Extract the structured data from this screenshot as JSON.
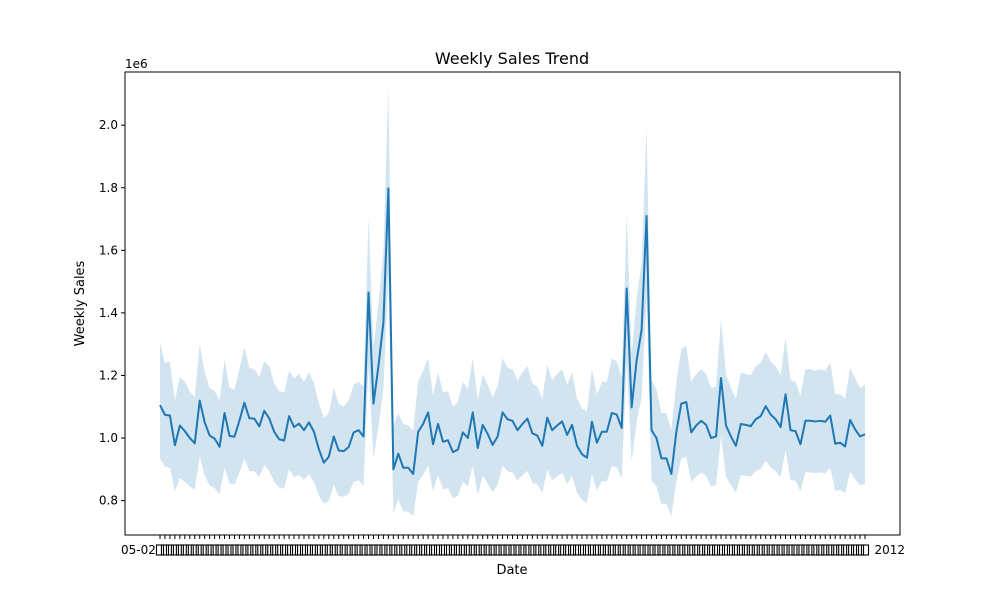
{
  "chart_data": {
    "type": "line",
    "title": "Weekly Sales Trend",
    "xlabel": "Date",
    "ylabel": "Weekly Sales",
    "y_multiplier_label": "1e6",
    "ylim": [
      0.69,
      2.17
    ],
    "y_ticks": [
      0.8,
      1.0,
      1.2,
      1.4,
      1.6,
      1.8,
      2.0
    ],
    "y_tick_labels": [
      "0.8",
      "1.0",
      "1.2",
      "1.4",
      "1.6",
      "1.8",
      "2.0"
    ],
    "x_tick_label_start": "05-02",
    "x_tick_label_end": "2012",
    "grid": false,
    "legend": "none",
    "colors": {
      "line": "#1f77b4",
      "band": "#1f77b4",
      "band_opacity": 0.2
    },
    "series": [
      {
        "y": [
          1.105,
          1.074,
          1.072,
          0.977,
          1.04,
          1.022,
          1.0,
          0.983,
          1.12,
          1.05,
          1.008,
          0.998,
          0.972,
          1.08,
          1.007,
          1.004,
          1.056,
          1.113,
          1.063,
          1.062,
          1.037,
          1.087,
          1.063,
          1.02,
          0.996,
          0.992,
          1.07,
          1.035,
          1.046,
          1.025,
          1.05,
          1.02,
          0.964,
          0.921,
          0.94,
          1.005,
          0.96,
          0.958,
          0.971,
          1.018,
          1.025,
          1.005,
          1.465,
          1.11,
          1.23,
          1.37,
          1.798,
          0.9,
          0.95,
          0.905,
          0.905,
          0.885,
          1.02,
          1.045,
          1.082,
          0.98,
          1.045,
          0.988,
          0.993,
          0.955,
          0.963,
          1.018,
          1.0,
          1.082,
          0.968,
          1.042,
          1.013,
          0.978,
          1.005,
          1.082,
          1.06,
          1.055,
          1.025,
          1.045,
          1.062,
          1.015,
          1.008,
          0.975,
          1.065,
          1.025,
          1.04,
          1.053,
          1.01,
          1.042,
          0.975,
          0.948,
          0.937,
          1.052,
          0.985,
          1.02,
          1.02,
          1.08,
          1.075,
          1.032,
          1.478,
          1.098,
          1.248,
          1.345,
          1.71,
          1.025,
          1.0,
          0.935,
          0.935,
          0.885,
          1.02,
          1.11,
          1.115,
          1.018,
          1.04,
          1.055,
          1.042,
          1.0,
          1.005,
          1.192,
          1.04,
          1.005,
          0.975,
          1.045,
          1.042,
          1.038,
          1.06,
          1.07,
          1.102,
          1.075,
          1.06,
          1.035,
          1.14,
          1.025,
          1.022,
          0.98,
          1.055,
          1.055,
          1.053,
          1.055,
          1.052,
          1.072,
          0.982,
          0.985,
          0.973,
          1.058,
          1.028,
          1.005,
          1.012
        ],
        "ci_low": [
          0.935,
          0.908,
          0.905,
          0.83,
          0.872,
          0.86,
          0.845,
          0.835,
          0.94,
          0.88,
          0.848,
          0.84,
          0.82,
          0.905,
          0.855,
          0.852,
          0.89,
          0.935,
          0.895,
          0.893,
          0.875,
          0.915,
          0.895,
          0.86,
          0.842,
          0.838,
          0.9,
          0.875,
          0.882,
          0.865,
          0.885,
          0.86,
          0.815,
          0.79,
          0.8,
          0.85,
          0.815,
          0.812,
          0.822,
          0.86,
          0.865,
          0.848,
          1.23,
          0.935,
          1.035,
          1.155,
          1.525,
          0.76,
          0.805,
          0.765,
          0.765,
          0.75,
          0.86,
          0.882,
          0.912,
          0.83,
          0.882,
          0.836,
          0.84,
          0.808,
          0.815,
          0.86,
          0.845,
          0.912,
          0.818,
          0.88,
          0.855,
          0.827,
          0.85,
          0.912,
          0.893,
          0.889,
          0.865,
          0.881,
          0.895,
          0.857,
          0.851,
          0.825,
          0.898,
          0.865,
          0.877,
          0.888,
          0.853,
          0.879,
          0.825,
          0.802,
          0.793,
          0.887,
          0.833,
          0.862,
          0.862,
          0.91,
          0.906,
          0.871,
          1.245,
          0.925,
          1.05,
          1.13,
          1.445,
          0.865,
          0.845,
          0.79,
          0.79,
          0.75,
          0.862,
          0.935,
          0.94,
          0.86,
          0.877,
          0.889,
          0.879,
          0.845,
          0.85,
          1.005,
          0.877,
          0.849,
          0.825,
          0.882,
          0.879,
          0.876,
          0.894,
          0.902,
          0.928,
          0.906,
          0.894,
          0.874,
          0.96,
          0.865,
          0.863,
          0.83,
          0.89,
          0.89,
          0.888,
          0.89,
          0.887,
          0.904,
          0.831,
          0.834,
          0.823,
          0.892,
          0.868,
          0.849,
          0.855
        ],
        "ci_high": [
          1.305,
          1.24,
          1.245,
          1.12,
          1.195,
          1.18,
          1.15,
          1.13,
          1.3,
          1.21,
          1.16,
          1.15,
          1.12,
          1.25,
          1.16,
          1.155,
          1.22,
          1.29,
          1.225,
          1.22,
          1.195,
          1.245,
          1.23,
          1.175,
          1.15,
          1.145,
          1.215,
          1.19,
          1.205,
          1.18,
          1.21,
          1.175,
          1.11,
          1.065,
          1.08,
          1.16,
          1.11,
          1.1,
          1.12,
          1.17,
          1.18,
          1.165,
          1.705,
          1.29,
          1.43,
          1.595,
          2.12,
          1.04,
          1.08,
          1.045,
          1.04,
          1.025,
          1.18,
          1.215,
          1.255,
          1.135,
          1.21,
          1.145,
          1.15,
          1.1,
          1.115,
          1.18,
          1.155,
          1.255,
          1.12,
          1.205,
          1.17,
          1.13,
          1.165,
          1.255,
          1.225,
          1.22,
          1.185,
          1.21,
          1.23,
          1.175,
          1.165,
          1.125,
          1.235,
          1.185,
          1.205,
          1.22,
          1.17,
          1.21,
          1.125,
          1.095,
          1.085,
          1.22,
          1.14,
          1.18,
          1.18,
          1.255,
          1.245,
          1.195,
          1.71,
          1.27,
          1.445,
          1.56,
          1.99,
          1.185,
          1.155,
          1.08,
          1.08,
          1.025,
          1.18,
          1.285,
          1.295,
          1.18,
          1.205,
          1.22,
          1.205,
          1.16,
          1.165,
          1.38,
          1.205,
          1.16,
          1.125,
          1.21,
          1.205,
          1.2,
          1.23,
          1.24,
          1.275,
          1.245,
          1.23,
          1.2,
          1.32,
          1.185,
          1.18,
          1.135,
          1.22,
          1.22,
          1.215,
          1.22,
          1.215,
          1.24,
          1.14,
          1.14,
          1.125,
          1.225,
          1.19,
          1.16,
          1.17
        ]
      }
    ]
  }
}
